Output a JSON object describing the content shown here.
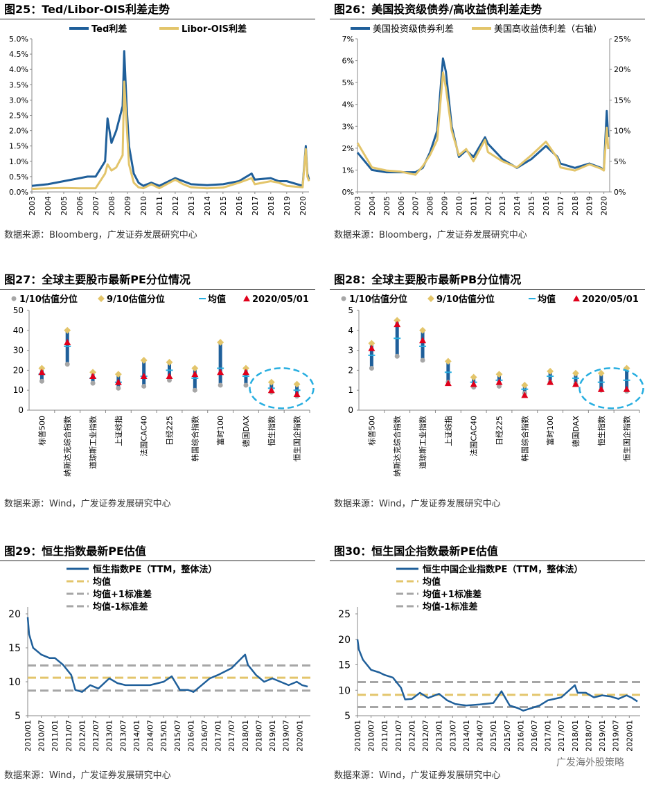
{
  "colors": {
    "blue": "#1f5f9a",
    "gold": "#e3c56b",
    "grey": "#a6a6a6",
    "red": "#e0001b",
    "cyan": "#27aee0"
  },
  "charts": {
    "c25": {
      "title": "图25：Ted/Libor-OIS利差走势",
      "source": "数据来源：Bloomberg，广发证券发展研究中心",
      "legend": [
        "Ted利差",
        "Libor-OIS利差"
      ],
      "y_ticks": [
        "0.0%",
        "0.5%",
        "1.0%",
        "1.5%",
        "2.0%",
        "2.5%",
        "3.0%",
        "3.5%",
        "4.0%",
        "4.5%",
        "5.0%"
      ],
      "x_ticks": [
        "2003",
        "2004",
        "2005",
        "2006",
        "2007",
        "2008",
        "2009",
        "2010",
        "2011",
        "2012",
        "2013",
        "2014",
        "2015",
        "2016",
        "2017",
        "2018",
        "2019",
        "2020"
      ]
    },
    "c26": {
      "title": "图26：美国投资级债券/高收益债利差走势",
      "source": "数据来源：Bloomberg，广发证券发展研究中心",
      "legend": [
        "美国投资级债券利差",
        "美国高收益债利差（右轴）"
      ],
      "y_ticks": [
        "0%",
        "1%",
        "2%",
        "3%",
        "4%",
        "5%",
        "6%",
        "7%"
      ],
      "y2_ticks": [
        "0%",
        "5%",
        "10%",
        "15%",
        "20%",
        "25%"
      ],
      "x_ticks": [
        "2003",
        "2004",
        "2005",
        "2006",
        "2007",
        "2008",
        "2009",
        "2010",
        "2011",
        "2012",
        "2013",
        "2014",
        "2015",
        "2016",
        "2017",
        "2018",
        "2019",
        "2020"
      ]
    },
    "c27": {
      "title": "图27：全球主要股市最新PE分位情况",
      "source": "数据来源：Wind，广发证券发展研究中心",
      "legend": [
        "1/10估值分位",
        "9/10估值分位",
        "均值",
        "2020/05/01"
      ],
      "y_ticks": [
        "0",
        "10",
        "20",
        "30",
        "40",
        "50"
      ]
    },
    "c28": {
      "title": "图28：全球主要股市最新PB分位情况",
      "source": "数据来源：Wind，广发证券发展研究中心",
      "legend": [
        "1/10估值分位",
        "9/10估值分位",
        "均值",
        "2020/05/01"
      ],
      "y_ticks": [
        "0",
        "1",
        "2",
        "3",
        "4",
        "5"
      ]
    },
    "c29": {
      "title": "图29：恒生指数最新PE估值",
      "source": "数据来源：Wind，广发证券发展研究中心",
      "legend": [
        "恒生指数PE（TTM，整体法）",
        "均值",
        "均值+1标准差",
        "均值-1标准差"
      ],
      "y_ticks": [
        "5",
        "10",
        "15",
        "20"
      ]
    },
    "c30": {
      "title": "图30：恒生国企指数最新PE估值",
      "source": "数据来源：Wind，广发证券发展研究中心",
      "legend": [
        "恒生中国企业指数PE（TTM，整体法）",
        "均值",
        "均值+1标准差",
        "均值-1标准差"
      ],
      "y_ticks": [
        "5",
        "10",
        "15",
        "20",
        "25"
      ]
    },
    "ts_x_ticks": [
      "2010/01",
      "2010/07",
      "2011/01",
      "2011/07",
      "2012/01",
      "2012/07",
      "2013/01",
      "2013/07",
      "2014/01",
      "2014/07",
      "2015/01",
      "2015/07",
      "2016/01",
      "2016/07",
      "2017/01",
      "2017/07",
      "2018/01",
      "2018/07",
      "2019/01",
      "2019/07",
      "2020/01"
    ]
  },
  "chart_data": [
    {
      "type": "line",
      "title": "Ted/Libor-OIS利差走势",
      "ylim": [
        0,
        5
      ],
      "xlim": [
        2003,
        2020.4
      ],
      "series": [
        {
          "name": "Ted利差",
          "x": [
            2003,
            2004,
            2005,
            2006,
            2006.5,
            2007,
            2007.6,
            2007.75,
            2008,
            2008.3,
            2008.7,
            2008.8,
            2008.95,
            2009.1,
            2009.4,
            2009.7,
            2010,
            2010.5,
            2011,
            2012,
            2012.5,
            2013,
            2014,
            2015,
            2016,
            2016.8,
            2017,
            2018,
            2018.5,
            2019,
            2020,
            2020.2,
            2020.3,
            2020.4
          ],
          "y": [
            0.2,
            0.25,
            0.35,
            0.45,
            0.5,
            0.5,
            1.0,
            2.4,
            1.6,
            2.0,
            2.8,
            4.6,
            2.8,
            1.5,
            0.6,
            0.3,
            0.2,
            0.3,
            0.2,
            0.45,
            0.35,
            0.25,
            0.22,
            0.25,
            0.35,
            0.6,
            0.4,
            0.45,
            0.35,
            0.35,
            0.2,
            1.5,
            0.6,
            0.4
          ]
        },
        {
          "name": "Libor-OIS利差",
          "x": [
            2003,
            2004,
            2005,
            2006,
            2007,
            2007.6,
            2007.75,
            2008,
            2008.3,
            2008.7,
            2008.8,
            2008.95,
            2009.1,
            2009.4,
            2009.7,
            2010,
            2010.5,
            2011,
            2012,
            2012.5,
            2013,
            2014,
            2015,
            2016,
            2016.8,
            2017,
            2018,
            2018.5,
            2019,
            2020,
            2020.2,
            2020.3,
            2020.4
          ],
          "y": [
            0.1,
            0.12,
            0.13,
            0.12,
            0.12,
            0.6,
            0.9,
            0.7,
            0.8,
            1.2,
            3.6,
            2.2,
            0.9,
            0.3,
            0.15,
            0.12,
            0.25,
            0.12,
            0.4,
            0.25,
            0.15,
            0.12,
            0.14,
            0.3,
            0.45,
            0.25,
            0.35,
            0.3,
            0.2,
            0.15,
            1.4,
            0.5,
            0.35
          ]
        }
      ]
    },
    {
      "type": "line",
      "title": "美国投资级债券/高收益债利差走势",
      "ylim": [
        0,
        7
      ],
      "y2lim": [
        0,
        25
      ],
      "xlim": [
        2003,
        2020.4
      ],
      "series": [
        {
          "name": "美国投资级债券利差",
          "axis": "left",
          "x": [
            2003,
            2003.5,
            2004,
            2005,
            2006,
            2007,
            2007.5,
            2008,
            2008.5,
            2008.9,
            2009.1,
            2009.5,
            2010,
            2010.5,
            2011,
            2011.8,
            2012,
            2013,
            2014,
            2015,
            2016,
            2016.8,
            2017,
            2018,
            2019,
            2019.8,
            2020,
            2020.2,
            2020.3
          ],
          "y": [
            1.8,
            1.4,
            1.0,
            0.9,
            0.9,
            0.9,
            1.1,
            1.8,
            2.8,
            6.1,
            5.5,
            3.0,
            1.6,
            1.9,
            1.6,
            2.5,
            2.2,
            1.5,
            1.1,
            1.5,
            2.1,
            1.6,
            1.3,
            1.1,
            1.3,
            1.1,
            1.0,
            3.7,
            2.5
          ]
        },
        {
          "name": "美国高收益债利差（右轴）",
          "axis": "right",
          "x": [
            2003,
            2003.5,
            2004,
            2005,
            2006,
            2007,
            2007.5,
            2008,
            2008.5,
            2008.9,
            2009.1,
            2009.5,
            2010,
            2010.5,
            2011,
            2011.8,
            2012,
            2013,
            2014,
            2015,
            2016,
            2016.8,
            2017,
            2018,
            2019,
            2019.8,
            2020,
            2020.2,
            2020.3
          ],
          "y": [
            8,
            6,
            4,
            3.5,
            3.3,
            2.8,
            4.2,
            6,
            8.5,
            19.5,
            17,
            10,
            6,
            7,
            5,
            8.5,
            6.5,
            5,
            4,
            6,
            8.2,
            5.5,
            4,
            3.5,
            4.5,
            3.8,
            3.5,
            10.5,
            7
          ]
        }
      ]
    },
    {
      "type": "scatter",
      "title": "全球主要股市最新PE分位情况",
      "ylim": [
        0,
        50
      ],
      "categories": [
        "标普500",
        "纳斯达克综合指数",
        "道琼斯工业指数",
        "上证综指",
        "法国CAC40",
        "日经225",
        "韩国综合指数",
        "富时100",
        "德国DAX",
        "恒生指数",
        "恒生国企指数"
      ],
      "series": [
        {
          "name": "1/10估值分位",
          "values": [
            14.5,
            23,
            13.5,
            11,
            12,
            15,
            10,
            12.5,
            12.5,
            9,
            7
          ]
        },
        {
          "name": "9/10估值分位",
          "values": [
            21,
            40,
            19,
            18,
            25,
            24,
            21,
            34,
            21,
            14,
            13
          ]
        },
        {
          "name": "均值",
          "values": [
            18,
            32,
            16,
            14,
            17,
            20,
            16,
            21,
            17,
            11,
            10
          ]
        },
        {
          "name": "2020/05/01",
          "values": [
            19,
            34,
            17,
            14,
            17,
            17,
            18,
            19,
            19,
            10,
            8
          ]
        }
      ]
    },
    {
      "type": "scatter",
      "title": "全球主要股市最新PB分位情况",
      "ylim": [
        0,
        5
      ],
      "categories": [
        "标普500",
        "纳斯达克综合指数",
        "道琼斯工业指数",
        "上证综指",
        "法国CAC40",
        "日经225",
        "韩国综合指数",
        "富时100",
        "德国DAX",
        "恒生指数",
        "恒生国企指数"
      ],
      "series": [
        {
          "name": "1/10估值分位",
          "values": [
            2.1,
            2.7,
            2.5,
            1.4,
            1.15,
            1.2,
            0.85,
            1.4,
            1.3,
            1.0,
            0.95
          ]
        },
        {
          "name": "9/10估值分位",
          "values": [
            3.35,
            4.5,
            4.0,
            2.45,
            1.65,
            1.8,
            1.25,
            1.95,
            1.85,
            1.85,
            2.1
          ]
        },
        {
          "name": "均值",
          "values": [
            2.75,
            3.6,
            3.2,
            1.9,
            1.4,
            1.5,
            1.05,
            1.7,
            1.6,
            1.4,
            1.5
          ]
        },
        {
          "name": "2020/05/01",
          "values": [
            3.1,
            4.3,
            3.5,
            1.35,
            1.3,
            1.4,
            0.75,
            1.4,
            1.3,
            1.05,
            1.05
          ]
        }
      ]
    },
    {
      "type": "line",
      "title": "恒生指数最新PE估值",
      "ylim": [
        5,
        20
      ],
      "xlim": [
        2010.0,
        2020.4
      ],
      "series": [
        {
          "name": "恒生指数PE（TTM，整体法）",
          "x": [
            2010.0,
            2010.05,
            2010.2,
            2010.5,
            2010.8,
            2011.0,
            2011.3,
            2011.6,
            2011.75,
            2012.0,
            2012.3,
            2012.6,
            2013.0,
            2013.3,
            2013.6,
            2014.0,
            2014.5,
            2015.0,
            2015.3,
            2015.6,
            2015.9,
            2016.1,
            2016.4,
            2016.7,
            2017.0,
            2017.5,
            2018.0,
            2018.1,
            2018.4,
            2018.7,
            2019.0,
            2019.3,
            2019.6,
            2019.9,
            2020.1,
            2020.3
          ],
          "y": [
            19.5,
            17,
            15,
            14,
            13.5,
            13.5,
            12.5,
            11,
            8.8,
            8.5,
            9.5,
            9,
            10.5,
            9.8,
            9.5,
            9.5,
            9.5,
            10,
            10.8,
            8.8,
            8.8,
            8.5,
            9.5,
            10.5,
            11,
            12,
            14,
            12.5,
            11,
            10,
            10.5,
            10,
            9.5,
            10,
            9.5,
            9.3
          ]
        },
        {
          "name": "均值",
          "values_const": 10.6
        },
        {
          "name": "均值+1标准差",
          "values_const": 12.4
        },
        {
          "name": "均值-1标准差",
          "values_const": 8.7
        }
      ]
    },
    {
      "type": "line",
      "title": "恒生国企指数最新PE估值",
      "ylim": [
        5,
        25
      ],
      "xlim": [
        2010.0,
        2020.4
      ],
      "series": [
        {
          "name": "恒生中国企业指数PE（TTM，整体法）",
          "x": [
            2010.0,
            2010.05,
            2010.2,
            2010.5,
            2010.8,
            2011.0,
            2011.3,
            2011.6,
            2011.75,
            2012.0,
            2012.3,
            2012.6,
            2013.0,
            2013.3,
            2013.6,
            2014.0,
            2014.5,
            2015.0,
            2015.3,
            2015.6,
            2015.9,
            2016.1,
            2016.4,
            2016.7,
            2017.0,
            2017.5,
            2018.0,
            2018.1,
            2018.4,
            2018.7,
            2019.0,
            2019.3,
            2019.6,
            2019.9,
            2020.1,
            2020.3
          ],
          "y": [
            20,
            18,
            16,
            14,
            13.5,
            13,
            12.5,
            10.5,
            8.2,
            8.3,
            9.5,
            8.5,
            9.3,
            8,
            7.3,
            7,
            7.2,
            7.5,
            9.8,
            7,
            6.5,
            6,
            6.5,
            7,
            8,
            8.6,
            11,
            9.5,
            9.5,
            8.6,
            9,
            8.8,
            8.3,
            9,
            8.5,
            7.8
          ]
        },
        {
          "name": "均值",
          "values_const": 9.1
        },
        {
          "name": "均值+1标准差",
          "values_const": 11.6
        },
        {
          "name": "均值-1标准差",
          "values_const": 6.7
        }
      ]
    }
  ],
  "watermark": "广发海外股策略"
}
